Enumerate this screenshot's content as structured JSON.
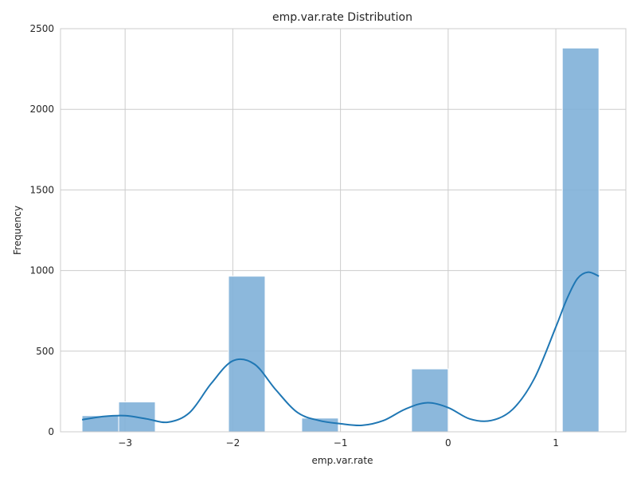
{
  "chart_data": {
    "type": "bar",
    "title": "emp.var.rate Distribution",
    "xlabel": "emp.var.rate",
    "ylabel": "Frequency",
    "xlim": [
      -3.6,
      1.65
    ],
    "ylim": [
      0,
      2500
    ],
    "xticks": [
      -3,
      -2,
      -1,
      0,
      1
    ],
    "xtick_labels": [
      "−3",
      "−2",
      "−1",
      "0",
      "1"
    ],
    "yticks": [
      0,
      500,
      1000,
      1500,
      2000,
      2500
    ],
    "ytick_labels": [
      "0",
      "500",
      "1000",
      "1500",
      "2000",
      "2500"
    ],
    "grid": true,
    "bars": [
      {
        "x0": -3.4,
        "x1": -3.06,
        "value": 100
      },
      {
        "x0": -3.06,
        "x1": -2.72,
        "value": 185
      },
      {
        "x0": -2.72,
        "x1": -2.38,
        "value": 0
      },
      {
        "x0": -2.38,
        "x1": -2.04,
        "value": 0
      },
      {
        "x0": -2.04,
        "x1": -1.7,
        "value": 965
      },
      {
        "x0": -1.7,
        "x1": -1.36,
        "value": 0
      },
      {
        "x0": -1.36,
        "x1": -1.02,
        "value": 85
      },
      {
        "x0": -1.02,
        "x1": -0.68,
        "value": 0
      },
      {
        "x0": -0.68,
        "x1": -0.34,
        "value": 0
      },
      {
        "x0": -0.34,
        "x1": 0.0,
        "value": 390
      },
      {
        "x0": 0.0,
        "x1": 0.34,
        "value": 0
      },
      {
        "x0": 0.34,
        "x1": 0.68,
        "value": 0
      },
      {
        "x0": 0.68,
        "x1": 1.02,
        "value": 0
      },
      {
        "x0": 1.06,
        "x1": 1.4,
        "value": 2380
      }
    ],
    "kde": {
      "x": [
        -3.4,
        -3.2,
        -3.0,
        -2.8,
        -2.6,
        -2.4,
        -2.2,
        -2.0,
        -1.8,
        -1.6,
        -1.4,
        -1.2,
        -1.0,
        -0.8,
        -0.6,
        -0.4,
        -0.2,
        0.0,
        0.2,
        0.4,
        0.6,
        0.8,
        1.0,
        1.1,
        1.2,
        1.3,
        1.4
      ],
      "y": [
        75,
        95,
        100,
        80,
        60,
        120,
        300,
        440,
        420,
        260,
        120,
        70,
        50,
        40,
        70,
        140,
        180,
        150,
        80,
        70,
        140,
        330,
        650,
        820,
        950,
        990,
        965
      ]
    },
    "colors": {
      "bar": "#7fb0d8",
      "line": "#1f77b4",
      "grid": "#cccccc"
    }
  }
}
